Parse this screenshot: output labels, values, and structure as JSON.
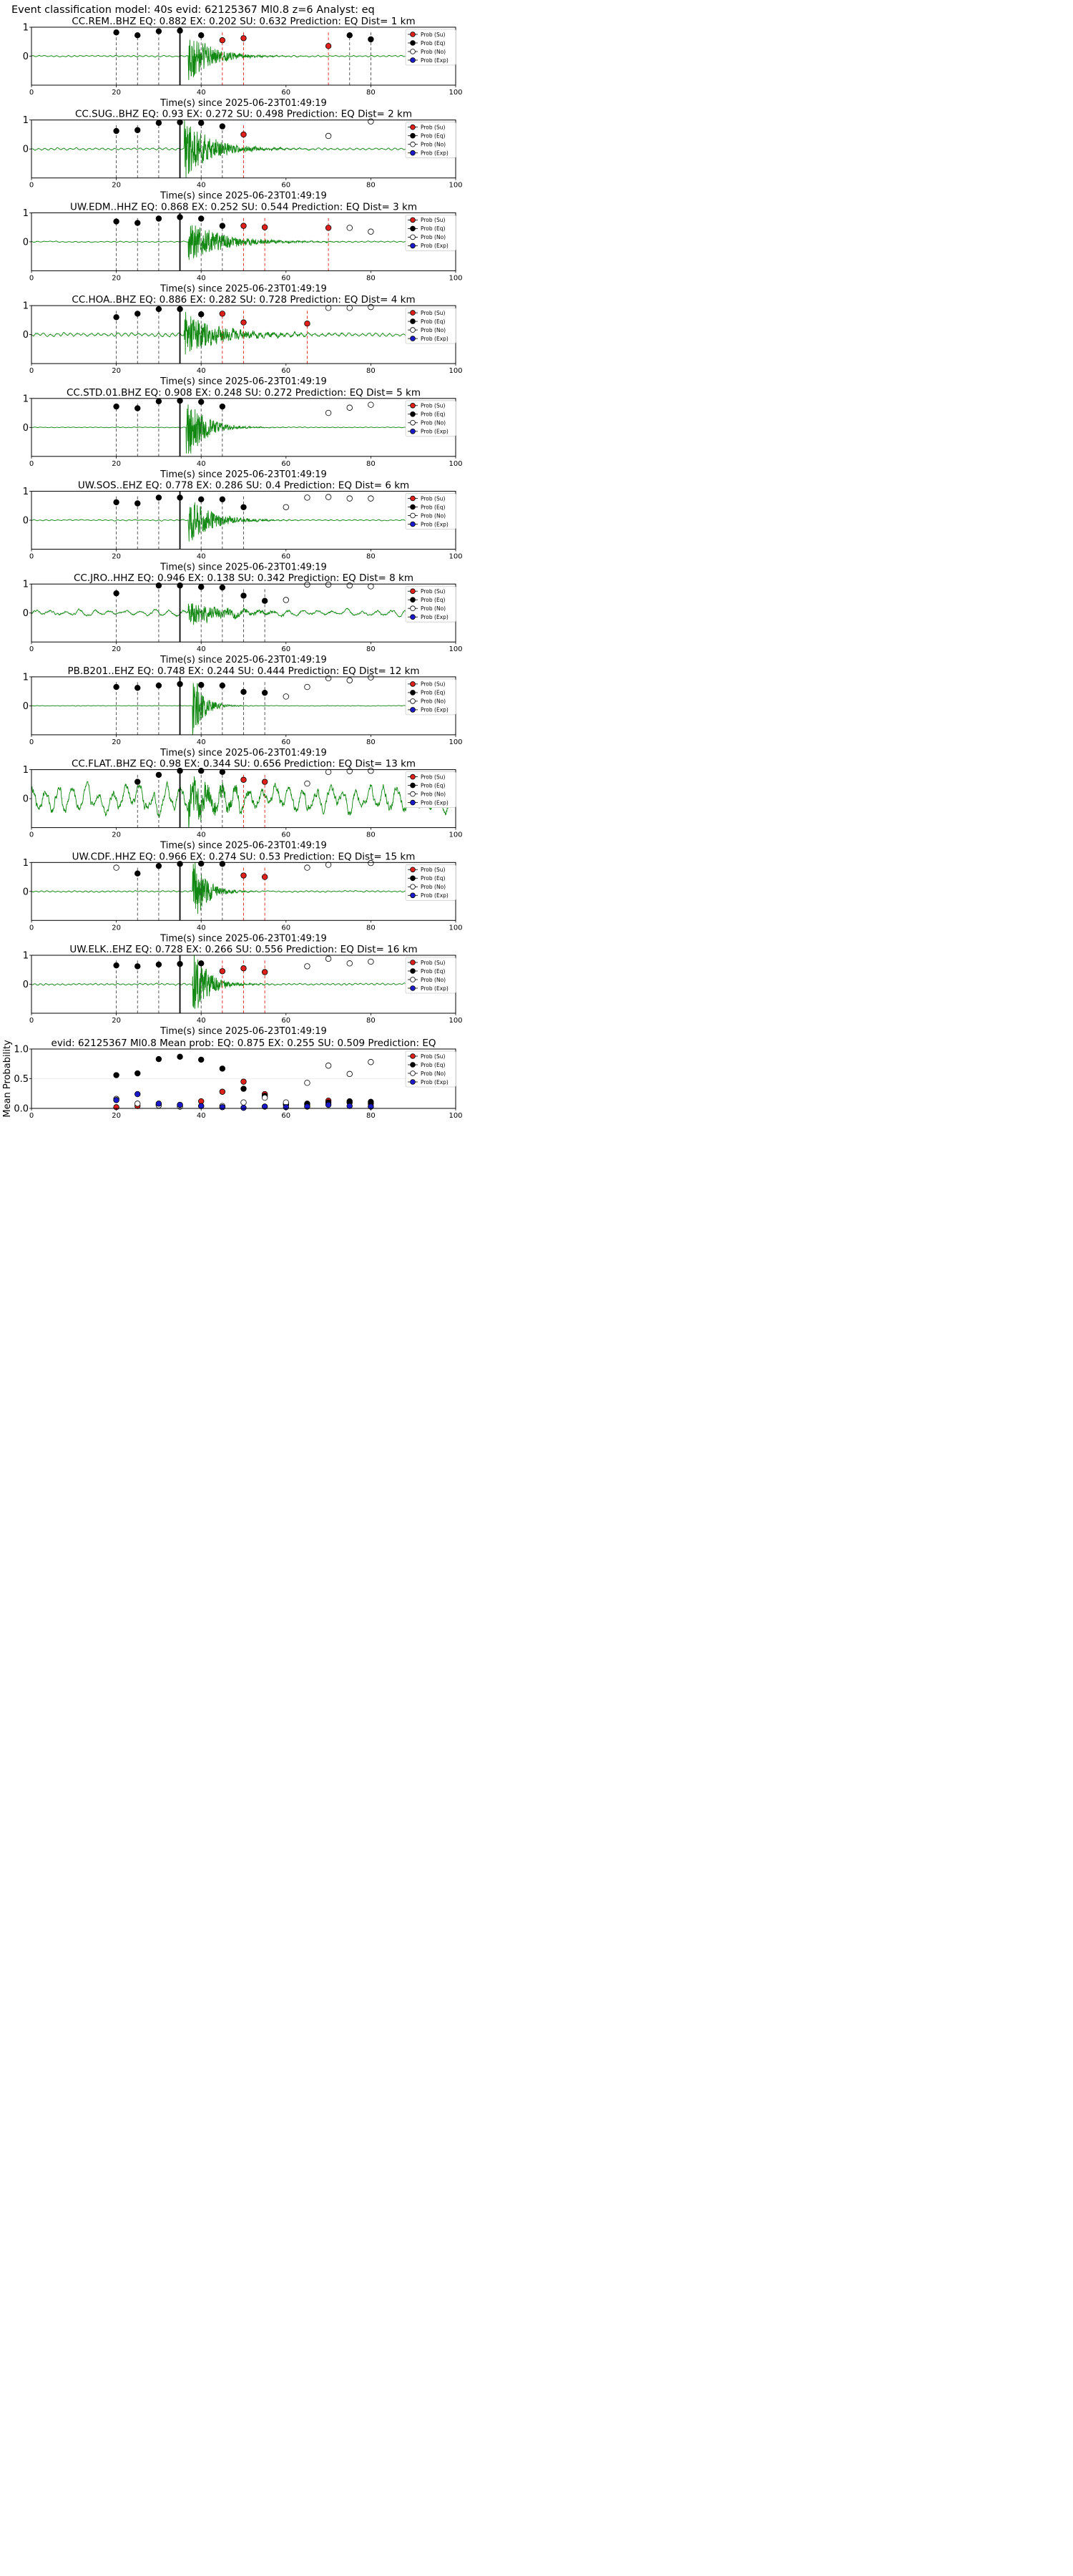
{
  "header": "Event classification model: 40s evid: 62125367 Ml0.8 z=6 Analyst: eq",
  "x_label": "Time(s) since 2025-06-23T01:49:19",
  "legend": [
    "Prob (Su)",
    "Prob (Eq)",
    "Prob (No)",
    "Prob (Exp)"
  ],
  "colors": {
    "su": "#e0201b",
    "eq": "#000000",
    "no": "#ffffff",
    "exp": "#1a1acc",
    "wave": "#118811"
  },
  "chart_data": [
    {
      "type": "scatter",
      "title": "CC.REM..BHZ   EQ: 0.882  EX: 0.202  SU: 0.632   Prediction: EQ    Dist= 1 km",
      "xlim": [
        0,
        100
      ],
      "ylim": [
        -1,
        1
      ],
      "yticks": [
        0,
        1
      ],
      "xticks": [
        0,
        20,
        40,
        60,
        80,
        100
      ],
      "wave": {
        "onset": 37,
        "amp": 0.75,
        "decay": 5,
        "noise": 0.025,
        "period": 1.4
      },
      "series": [
        {
          "name": "Prob (Su)",
          "x": [
            45,
            50,
            70
          ],
          "y": [
            0.55,
            0.62,
            0.35
          ]
        },
        {
          "name": "Prob (Eq)",
          "x": [
            20,
            25,
            30,
            35,
            40,
            75,
            80
          ],
          "y": [
            0.82,
            0.72,
            0.86,
            0.88,
            0.72,
            0.72,
            0.58
          ]
        },
        {
          "name": "Prob (No)",
          "x": [],
          "y": []
        },
        {
          "name": "Prob (Exp)",
          "x": [],
          "y": []
        }
      ],
      "black_lines": [
        20,
        25,
        30,
        40,
        75,
        80
      ],
      "red_lines": [
        45,
        50,
        70
      ],
      "solid_line": 35
    },
    {
      "type": "scatter",
      "title": "CC.SUG..BHZ   EQ: 0.93  EX: 0.272  SU: 0.498   Prediction: EQ    Dist= 2 km",
      "xlim": [
        0,
        100
      ],
      "ylim": [
        -1,
        1
      ],
      "yticks": [
        0,
        1
      ],
      "xticks": [
        0,
        20,
        40,
        60,
        80,
        100
      ],
      "wave": {
        "onset": 36,
        "amp": 0.85,
        "decay": 6,
        "noise": 0.035,
        "period": 1.5
      },
      "series": [
        {
          "name": "Prob (Su)",
          "x": [
            50
          ],
          "y": [
            0.5
          ]
        },
        {
          "name": "Prob (Eq)",
          "x": [
            20,
            25,
            30,
            35,
            40,
            45
          ],
          "y": [
            0.62,
            0.65,
            0.9,
            0.92,
            0.9,
            0.78
          ]
        },
        {
          "name": "Prob (No)",
          "x": [
            70,
            80
          ],
          "y": [
            0.45,
            0.95
          ]
        },
        {
          "name": "Prob (Exp)",
          "x": [],
          "y": []
        }
      ],
      "black_lines": [
        20,
        25,
        30,
        40,
        45
      ],
      "red_lines": [
        50
      ],
      "solid_line": 35
    },
    {
      "type": "scatter",
      "title": "UW.EDM..HHZ   EQ: 0.868  EX: 0.252  SU: 0.544   Prediction: EQ    Dist= 3 km",
      "xlim": [
        0,
        100
      ],
      "ylim": [
        -1,
        1
      ],
      "yticks": [
        0,
        1
      ],
      "xticks": [
        0,
        20,
        40,
        60,
        80,
        100
      ],
      "wave": {
        "onset": 37,
        "amp": 0.55,
        "decay": 8,
        "noise": 0.02,
        "period": 1.5
      },
      "series": [
        {
          "name": "Prob (Su)",
          "x": [
            50,
            55,
            70
          ],
          "y": [
            0.55,
            0.5,
            0.48
          ]
        },
        {
          "name": "Prob (Eq)",
          "x": [
            20,
            25,
            30,
            35,
            40,
            45
          ],
          "y": [
            0.7,
            0.65,
            0.8,
            0.85,
            0.8,
            0.55
          ]
        },
        {
          "name": "Prob (No)",
          "x": [
            75,
            80
          ],
          "y": [
            0.48,
            0.35
          ]
        },
        {
          "name": "Prob (Exp)",
          "x": [],
          "y": []
        }
      ],
      "black_lines": [
        20,
        25,
        30,
        40,
        45
      ],
      "red_lines": [
        50,
        55,
        70
      ],
      "solid_line": 35
    },
    {
      "type": "scatter",
      "title": "CC.HOA..BHZ   EQ: 0.886  EX: 0.282  SU: 0.728   Prediction: EQ    Dist= 4 km",
      "xlim": [
        0,
        100
      ],
      "ylim": [
        -1,
        1
      ],
      "yticks": [
        0,
        1
      ],
      "xticks": [
        0,
        20,
        40,
        60,
        80,
        100
      ],
      "wave": {
        "onset": 36,
        "amp": 0.6,
        "decay": 8,
        "noise": 0.06,
        "period": 1.6
      },
      "series": [
        {
          "name": "Prob (Su)",
          "x": [
            45,
            50,
            65
          ],
          "y": [
            0.72,
            0.42,
            0.38
          ]
        },
        {
          "name": "Prob (Eq)",
          "x": [
            20,
            25,
            30,
            35,
            40
          ],
          "y": [
            0.6,
            0.72,
            0.88,
            0.88,
            0.7
          ]
        },
        {
          "name": "Prob (No)",
          "x": [
            70,
            75,
            80
          ],
          "y": [
            0.92,
            0.92,
            0.95
          ]
        },
        {
          "name": "Prob (Exp)",
          "x": [],
          "y": []
        }
      ],
      "black_lines": [
        20,
        25,
        30,
        40
      ],
      "red_lines": [
        45,
        50,
        65
      ],
      "solid_line": 35
    },
    {
      "type": "scatter",
      "title": "CC.STD.01.BHZ   EQ: 0.908  EX: 0.248  SU: 0.272   Prediction: EQ    Dist= 5 km",
      "xlim": [
        0,
        100
      ],
      "ylim": [
        -1,
        1
      ],
      "yticks": [
        0,
        1
      ],
      "xticks": [
        0,
        20,
        40,
        60,
        80,
        100
      ],
      "wave": {
        "onset": 36.5,
        "amp": 0.95,
        "decay": 4,
        "noise": 0.012,
        "period": 1.3
      },
      "series": [
        {
          "name": "Prob (Su)",
          "x": [],
          "y": []
        },
        {
          "name": "Prob (Eq)",
          "x": [
            20,
            25,
            30,
            35,
            40,
            45
          ],
          "y": [
            0.72,
            0.66,
            0.9,
            0.92,
            0.88,
            0.72
          ]
        },
        {
          "name": "Prob (No)",
          "x": [
            70,
            75,
            80
          ],
          "y": [
            0.5,
            0.68,
            0.78
          ]
        },
        {
          "name": "Prob (Exp)",
          "x": [],
          "y": []
        }
      ],
      "black_lines": [
        20,
        25,
        30,
        40,
        45
      ],
      "red_lines": [],
      "solid_line": 35
    },
    {
      "type": "scatter",
      "title": "UW.SOS..EHZ   EQ: 0.778  EX: 0.286  SU: 0.4   Prediction: EQ    Dist= 6 km",
      "xlim": [
        0,
        100
      ],
      "ylim": [
        -1,
        1
      ],
      "yticks": [
        0,
        1
      ],
      "xticks": [
        0,
        20,
        40,
        60,
        80,
        100
      ],
      "wave": {
        "onset": 37,
        "amp": 0.7,
        "decay": 5,
        "noise": 0.02,
        "period": 1.4
      },
      "series": [
        {
          "name": "Prob (Su)",
          "x": [],
          "y": []
        },
        {
          "name": "Prob (Eq)",
          "x": [
            20,
            25,
            30,
            35,
            40,
            45,
            50
          ],
          "y": [
            0.62,
            0.58,
            0.78,
            0.78,
            0.72,
            0.72,
            0.45
          ]
        },
        {
          "name": "Prob (No)",
          "x": [
            60,
            65,
            70,
            75,
            80
          ],
          "y": [
            0.45,
            0.78,
            0.8,
            0.75,
            0.75
          ]
        },
        {
          "name": "Prob (Exp)",
          "x": [],
          "y": []
        }
      ],
      "black_lines": [
        20,
        25,
        30,
        40,
        45,
        50
      ],
      "red_lines": [],
      "solid_line": 35
    },
    {
      "type": "scatter",
      "title": "CC.JRO..HHZ   EQ: 0.946  EX: 0.138  SU: 0.342   Prediction: EQ    Dist= 8 km",
      "xlim": [
        0,
        100
      ],
      "ylim": [
        -1,
        1
      ],
      "yticks": [
        0,
        1
      ],
      "xticks": [
        0,
        20,
        40,
        60,
        80,
        100
      ],
      "wave": {
        "onset": 37,
        "amp": 0.4,
        "decay": 7,
        "noise": 0.1,
        "period": 3.5
      },
      "series": [
        {
          "name": "Prob (Su)",
          "x": [],
          "y": []
        },
        {
          "name": "Prob (Eq)",
          "x": [
            20,
            30,
            35,
            40,
            45,
            50,
            55
          ],
          "y": [
            0.68,
            0.95,
            0.95,
            0.9,
            0.88,
            0.6,
            0.42
          ]
        },
        {
          "name": "Prob (No)",
          "x": [
            60,
            65,
            70,
            75,
            80
          ],
          "y": [
            0.45,
            0.98,
            0.98,
            0.95,
            0.92
          ]
        },
        {
          "name": "Prob (Exp)",
          "x": [],
          "y": []
        }
      ],
      "black_lines": [
        20,
        30,
        40,
        45,
        50,
        55
      ],
      "red_lines": [],
      "solid_line": 35
    },
    {
      "type": "scatter",
      "title": "PB.B201..EHZ   EQ: 0.748  EX: 0.244  SU: 0.444   Prediction: EQ    Dist= 12 km",
      "xlim": [
        0,
        100
      ],
      "ylim": [
        -1,
        1
      ],
      "yticks": [
        0,
        1
      ],
      "xticks": [
        0,
        20,
        40,
        60,
        80,
        100
      ],
      "wave": {
        "onset": 38,
        "amp": 0.95,
        "decay": 2.5,
        "noise": 0.01,
        "period": 1.2
      },
      "series": [
        {
          "name": "Prob (Su)",
          "x": [],
          "y": []
        },
        {
          "name": "Prob (Eq)",
          "x": [
            20,
            25,
            30,
            35,
            40,
            45,
            50,
            55
          ],
          "y": [
            0.65,
            0.62,
            0.7,
            0.75,
            0.72,
            0.7,
            0.48,
            0.45
          ]
        },
        {
          "name": "Prob (No)",
          "x": [
            60,
            65,
            70,
            75,
            80
          ],
          "y": [
            0.32,
            0.65,
            0.95,
            0.88,
            0.98
          ]
        },
        {
          "name": "Prob (Exp)",
          "x": [],
          "y": []
        }
      ],
      "black_lines": [
        20,
        25,
        30,
        40,
        45,
        50,
        55
      ],
      "red_lines": [],
      "solid_line": 35
    },
    {
      "type": "scatter",
      "title": "CC.FLAT..BHZ   EQ: 0.98  EX: 0.344  SU: 0.656   Prediction: EQ    Dist= 13 km",
      "xlim": [
        0,
        100
      ],
      "ylim": [
        -1,
        1
      ],
      "yticks": [
        0,
        1
      ],
      "xticks": [
        0,
        20,
        40,
        60,
        80,
        100
      ],
      "wave": {
        "onset": 37,
        "amp": 0.6,
        "decay": 6,
        "noise": 0.45,
        "period": 3.2
      },
      "series": [
        {
          "name": "Prob (Su)",
          "x": [
            50,
            55
          ],
          "y": [
            0.65,
            0.58
          ]
        },
        {
          "name": "Prob (Eq)",
          "x": [
            25,
            30,
            35,
            40,
            45
          ],
          "y": [
            0.58,
            0.82,
            0.96,
            0.96,
            0.92
          ]
        },
        {
          "name": "Prob (No)",
          "x": [
            65,
            70,
            75,
            80
          ],
          "y": [
            0.52,
            0.92,
            0.95,
            0.96
          ]
        },
        {
          "name": "Prob (Exp)",
          "x": [],
          "y": []
        }
      ],
      "black_lines": [
        25,
        30,
        40,
        45
      ],
      "red_lines": [
        50,
        55
      ],
      "solid_line": 35
    },
    {
      "type": "scatter",
      "title": "UW.CDF..HHZ   EQ: 0.966  EX: 0.274  SU: 0.53   Prediction: EQ    Dist= 15 km",
      "xlim": [
        0,
        100
      ],
      "ylim": [
        -1,
        1
      ],
      "yticks": [
        0,
        1
      ],
      "xticks": [
        0,
        20,
        40,
        60,
        80,
        100
      ],
      "wave": {
        "onset": 38,
        "amp": 0.95,
        "decay": 3,
        "noise": 0.025,
        "period": 1.3
      },
      "series": [
        {
          "name": "Prob (Su)",
          "x": [
            50,
            55
          ],
          "y": [
            0.55,
            0.5
          ]
        },
        {
          "name": "Prob (Eq)",
          "x": [
            25,
            30,
            35,
            40,
            45
          ],
          "y": [
            0.62,
            0.88,
            0.95,
            0.96,
            0.95
          ]
        },
        {
          "name": "Prob (No)",
          "x": [
            20,
            65,
            70,
            80
          ],
          "y": [
            0.82,
            0.82,
            0.92,
            0.98
          ]
        },
        {
          "name": "Prob (Exp)",
          "x": [],
          "y": []
        }
      ],
      "black_lines": [
        25,
        30,
        40,
        45
      ],
      "red_lines": [
        50,
        55
      ],
      "solid_line": 35
    },
    {
      "type": "scatter",
      "title": "UW.ELK..EHZ   EQ: 0.728  EX: 0.266  SU: 0.556   Prediction: EQ    Dist= 16 km",
      "xlim": [
        0,
        100
      ],
      "ylim": [
        -1,
        1
      ],
      "yticks": [
        0,
        1
      ],
      "xticks": [
        0,
        20,
        40,
        60,
        80,
        100
      ],
      "wave": {
        "onset": 38,
        "amp": 0.95,
        "decay": 3.5,
        "noise": 0.03,
        "period": 1.3
      },
      "series": [
        {
          "name": "Prob (Su)",
          "x": [
            45,
            50,
            55
          ],
          "y": [
            0.45,
            0.55,
            0.42
          ]
        },
        {
          "name": "Prob (Eq)",
          "x": [
            20,
            25,
            30,
            35,
            40
          ],
          "y": [
            0.65,
            0.62,
            0.68,
            0.7,
            0.72
          ]
        },
        {
          "name": "Prob (No)",
          "x": [
            65,
            70,
            75,
            80
          ],
          "y": [
            0.62,
            0.88,
            0.72,
            0.78
          ]
        },
        {
          "name": "Prob (Exp)",
          "x": [],
          "y": []
        }
      ],
      "black_lines": [
        20,
        25,
        30,
        40
      ],
      "red_lines": [
        45,
        50,
        55
      ],
      "solid_line": 35
    },
    {
      "type": "scatter",
      "title": "evid: 62125367  Ml0.8   Mean prob:   EQ: 0.875  EX: 0.255  SU: 0.509   Prediction: EQ",
      "ylabel": "Mean Probability",
      "xlim": [
        0,
        100
      ],
      "ylim": [
        0,
        1
      ],
      "yticks": [
        0.0,
        0.5,
        1.0
      ],
      "xticks": [
        0,
        20,
        40,
        60,
        80,
        100
      ],
      "series": [
        {
          "name": "Prob (Su)",
          "x": [
            20,
            25,
            30,
            35,
            40,
            45,
            50,
            55,
            60,
            65,
            70,
            75,
            80
          ],
          "y": [
            0.02,
            0.04,
            0.06,
            0.05,
            0.12,
            0.28,
            0.45,
            0.24,
            0.06,
            0.08,
            0.13,
            0.1,
            0.08
          ]
        },
        {
          "name": "Prob (Eq)",
          "x": [
            20,
            25,
            30,
            35,
            40,
            45,
            50,
            55,
            60,
            65,
            70,
            75,
            80
          ],
          "y": [
            0.56,
            0.59,
            0.83,
            0.87,
            0.82,
            0.67,
            0.33,
            0.21,
            0.07,
            0.07,
            0.1,
            0.12,
            0.11
          ]
        },
        {
          "name": "Prob (No)",
          "x": [
            20,
            25,
            30,
            35,
            40,
            45,
            50,
            55,
            60,
            65,
            70,
            75,
            80
          ],
          "y": [
            0.16,
            0.08,
            0.05,
            0.03,
            0.04,
            0.04,
            0.1,
            0.18,
            0.1,
            0.43,
            0.72,
            0.58,
            0.78
          ]
        },
        {
          "name": "Prob (Exp)",
          "x": [
            20,
            25,
            30,
            35,
            40,
            45,
            50,
            55,
            60,
            65,
            70,
            75,
            80
          ],
          "y": [
            0.14,
            0.24,
            0.08,
            0.06,
            0.04,
            0.02,
            0.01,
            0.03,
            0.02,
            0.03,
            0.06,
            0.04,
            0.03
          ]
        }
      ]
    }
  ]
}
